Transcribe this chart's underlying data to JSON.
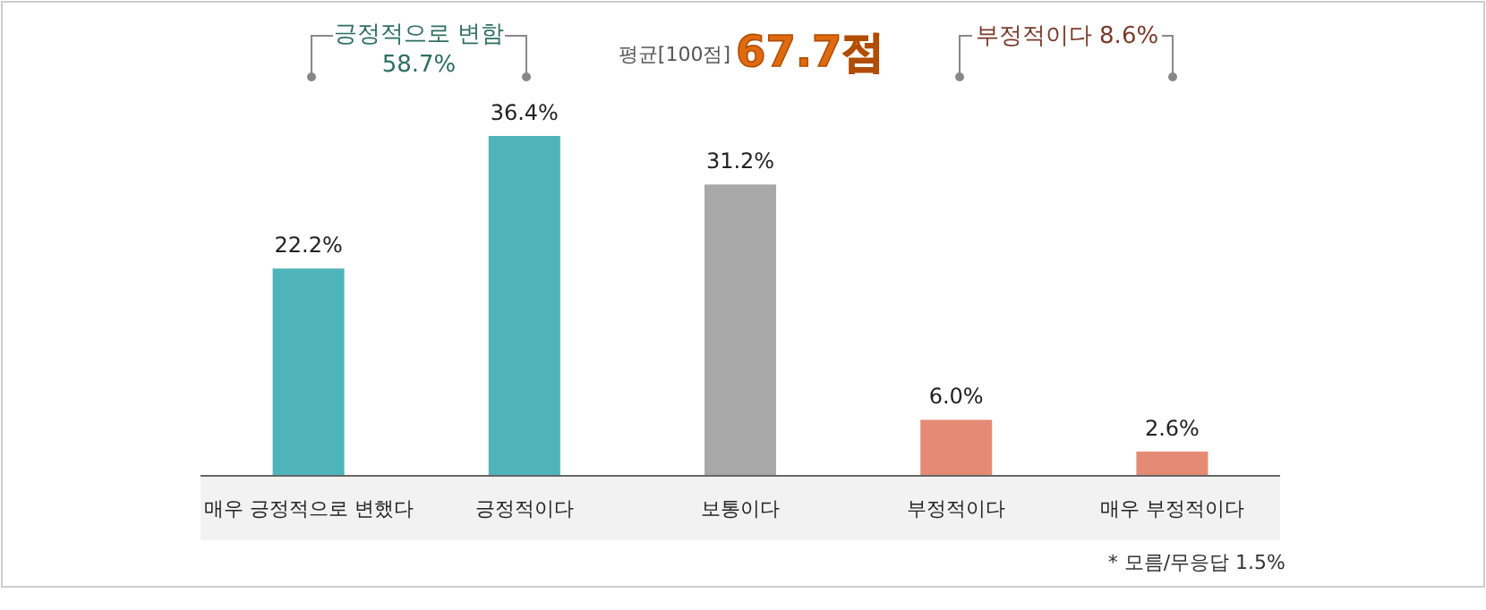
{
  "chart_data": {
    "type": "bar",
    "categories": [
      "매우 긍정적으로 변했다",
      "긍정적이다",
      "보통이다",
      "부정적이다",
      "매우 부정적이다"
    ],
    "values": [
      22.2,
      36.4,
      31.2,
      6.0,
      2.6
    ],
    "value_labels": [
      "22.2%",
      "36.4%",
      "31.2%",
      "6.0%",
      "2.6%"
    ],
    "colors": [
      "#4fb3ba",
      "#4fb3ba",
      "#a8a8a8",
      "#e58a74",
      "#e58a74"
    ],
    "annotations": [
      "긍정적으로 변함",
      "58.7%",
      "평균[100점]",
      "67.7점",
      "부정적이다 8.6%",
      "* 모름/무응답 1.5%"
    ]
  }
}
